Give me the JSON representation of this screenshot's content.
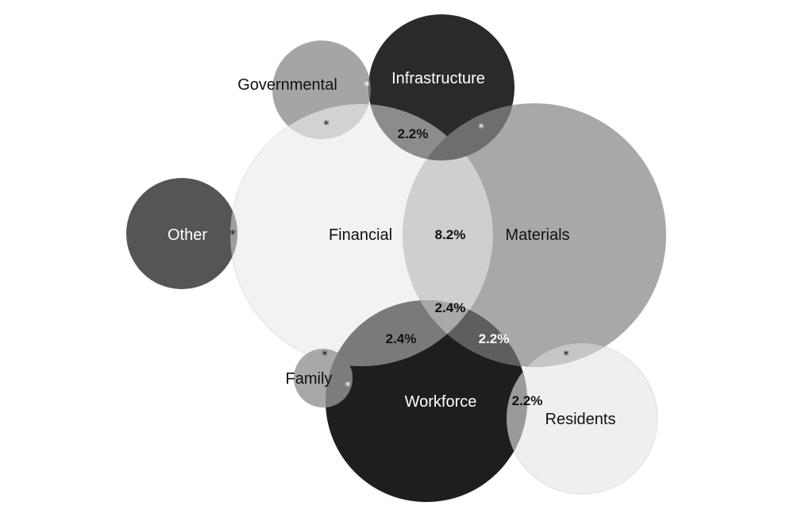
{
  "sets": [
    {
      "id": "financial",
      "label": "Financial",
      "fill": "#f2f2f2",
      "text_color": "#111111"
    },
    {
      "id": "materials",
      "label": "Materials",
      "fill": "#a8a8a8",
      "text_color": "#111111"
    },
    {
      "id": "workforce",
      "label": "Workforce",
      "fill": "#1e1e1e",
      "text_color": "#ffffff"
    },
    {
      "id": "infrastructure",
      "label": "Infrastructure",
      "fill": "#2a2a2a",
      "text_color": "#ffffff"
    },
    {
      "id": "governmental",
      "label": "Governmental",
      "fill": "#a5a5a5",
      "text_color": "#111111"
    },
    {
      "id": "other",
      "label": "Other",
      "fill": "#555555",
      "text_color": "#ffffff"
    },
    {
      "id": "family",
      "label": "Family",
      "fill": "#a8a8a8",
      "text_color": "#111111"
    },
    {
      "id": "residents",
      "label": "Residents",
      "fill": "#efefef",
      "text_color": "#111111"
    }
  ],
  "overlaps": [
    {
      "id": "financial-materials",
      "value": "8.2%",
      "sets": [
        "financial",
        "materials"
      ]
    },
    {
      "id": "financial-infrastructure",
      "value": "2.2%",
      "sets": [
        "financial",
        "infrastructure"
      ]
    },
    {
      "id": "financial-workforce",
      "value": "2.4%",
      "sets": [
        "financial",
        "workforce"
      ]
    },
    {
      "id": "materials-workforce",
      "value": "2.2%",
      "sets": [
        "materials",
        "workforce"
      ]
    },
    {
      "id": "financial-materials-workforce",
      "value": "2.4%",
      "sets": [
        "financial",
        "materials",
        "workforce"
      ]
    },
    {
      "id": "workforce-residents",
      "value": "2.2%",
      "sets": [
        "workforce",
        "residents"
      ]
    }
  ],
  "small_overlap_marker": "*"
}
